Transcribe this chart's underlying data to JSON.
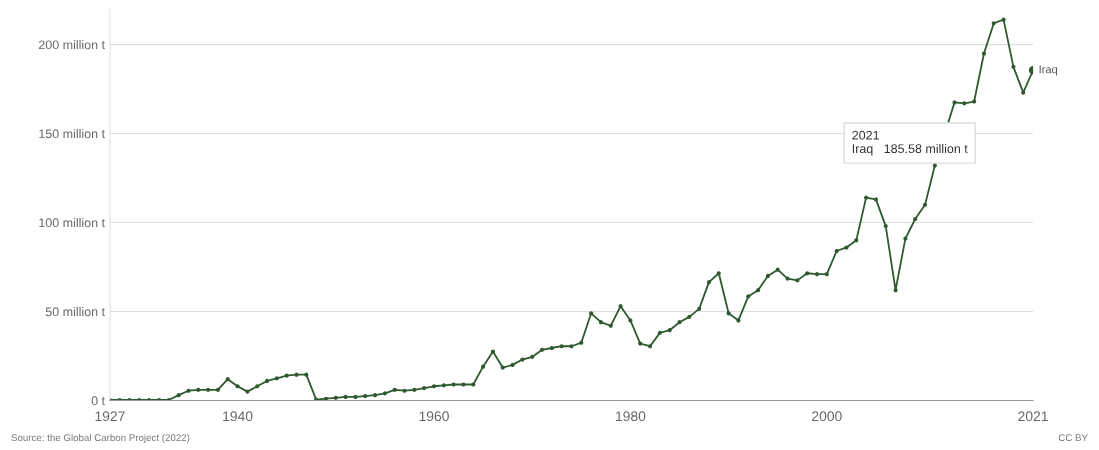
{
  "chart_data": {
    "type": "line",
    "x": [
      1927,
      1928,
      1929,
      1930,
      1931,
      1932,
      1933,
      1934,
      1935,
      1936,
      1937,
      1938,
      1939,
      1940,
      1941,
      1942,
      1943,
      1944,
      1945,
      1946,
      1947,
      1948,
      1949,
      1950,
      1951,
      1952,
      1953,
      1954,
      1955,
      1956,
      1957,
      1958,
      1959,
      1960,
      1961,
      1962,
      1963,
      1964,
      1965,
      1966,
      1967,
      1968,
      1969,
      1970,
      1971,
      1972,
      1973,
      1974,
      1975,
      1976,
      1977,
      1978,
      1979,
      1980,
      1981,
      1982,
      1983,
      1984,
      1985,
      1986,
      1987,
      1988,
      1989,
      1990,
      1991,
      1992,
      1993,
      1994,
      1995,
      1996,
      1997,
      1998,
      1999,
      2000,
      2001,
      2002,
      2003,
      2004,
      2005,
      2006,
      2007,
      2008,
      2009,
      2010,
      2011,
      2012,
      2013,
      2014,
      2015,
      2016,
      2017,
      2018,
      2019,
      2020,
      2021
    ],
    "series": [
      {
        "name": "Iraq",
        "color": "#2f5a2f",
        "values": [
          0.3,
          0.3,
          0.3,
          0.3,
          0.3,
          0.3,
          0.3,
          3,
          5.5,
          6,
          6,
          6,
          12,
          8,
          5,
          8,
          11,
          12.5,
          14,
          14.5,
          14.5,
          0.5,
          1,
          1.5,
          2,
          2,
          2.5,
          3,
          4,
          6,
          5.5,
          6,
          7,
          8,
          8.5,
          9,
          9,
          9,
          19,
          27.5,
          18.5,
          20,
          23,
          24.5,
          28.5,
          29.5,
          30.5,
          30.5,
          32.5,
          49,
          44,
          42,
          53,
          45,
          32,
          30.5,
          38,
          39.5,
          44,
          47,
          51.5,
          66.5,
          71.5,
          49,
          45,
          58.5,
          62,
          70,
          73.5,
          68.5,
          67.5,
          71.5,
          71,
          71,
          84,
          86,
          90,
          114,
          113,
          98,
          62,
          91,
          102,
          110,
          132,
          null,
          167.5,
          167,
          168,
          195,
          212,
          214,
          187.5,
          173,
          185.58
        ]
      }
    ],
    "xlim": [
      1927,
      2021
    ],
    "xticks": [
      1927,
      1940,
      1960,
      1980,
      2000,
      2021
    ],
    "ylim": [
      0,
      220
    ],
    "yticks": [
      {
        "value": 0,
        "label": "0 t"
      },
      {
        "value": 50,
        "label": "50 million t"
      },
      {
        "value": 100,
        "label": "100 million t"
      },
      {
        "value": 150,
        "label": "150 million t"
      },
      {
        "value": 200,
        "label": "200 million t"
      }
    ],
    "grid": "y",
    "marker": "circle",
    "line_style": "solid",
    "annotations": [
      "2021\nIraq   185.58 million t",
      "Source: the Global Carbon Project (2022)",
      "CC BY"
    ]
  }
}
